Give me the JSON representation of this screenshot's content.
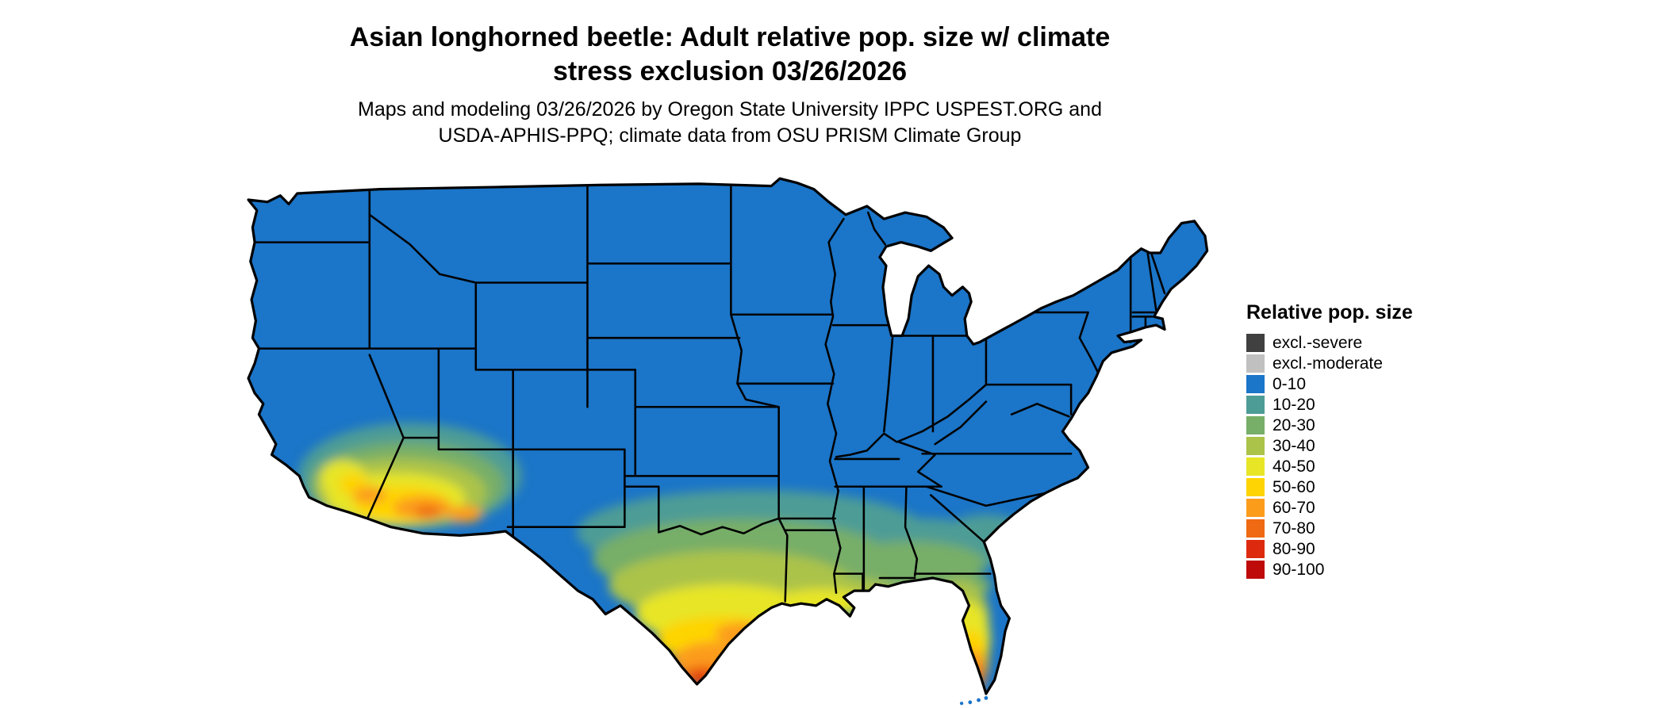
{
  "title": {
    "line1": "Asian longhorned beetle: Adult relative pop. size w/ climate",
    "line2": "stress exclusion 03/26/2026"
  },
  "subtitle": {
    "line1": "Maps and modeling 03/26/2026 by Oregon State University IPPC USPEST.ORG and",
    "line2": "USDA-APHIS-PPQ; climate data from OSU PRISM Climate Group"
  },
  "map": {
    "region": "Continental United States",
    "base_color": "#1b75c8",
    "border_color": "#000000",
    "background_color": "#ffffff",
    "high_population_areas": "southern California, southern Arizona, southern Texas, Gulf Coast, Florida"
  },
  "legend": {
    "title": "Relative pop. size",
    "items": [
      {
        "label": "excl.-severe",
        "color": "#404040"
      },
      {
        "label": "excl.-moderate",
        "color": "#c0c0c0"
      },
      {
        "label": "0-10",
        "color": "#1b75c8"
      },
      {
        "label": "10-20",
        "color": "#4e9c96"
      },
      {
        "label": "20-30",
        "color": "#77ae68"
      },
      {
        "label": "30-40",
        "color": "#abc348"
      },
      {
        "label": "40-50",
        "color": "#e7e525"
      },
      {
        "label": "50-60",
        "color": "#fed402"
      },
      {
        "label": "60-70",
        "color": "#fc9c1b"
      },
      {
        "label": "70-80",
        "color": "#ef6a12"
      },
      {
        "label": "80-90",
        "color": "#dd2a0e"
      },
      {
        "label": "90-100",
        "color": "#bf0a0a"
      }
    ]
  }
}
